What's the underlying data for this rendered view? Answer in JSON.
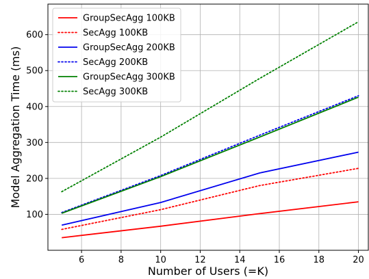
{
  "chart_data": {
    "type": "line",
    "title": "",
    "xlabel": "Number of Users (=K)",
    "ylabel": "Model Aggregation Time (ms)",
    "xlim": [
      4.3,
      20.5
    ],
    "ylim": [
      0,
      685
    ],
    "xticks": [
      6,
      8,
      10,
      12,
      14,
      16,
      18,
      20
    ],
    "yticks": [
      100,
      200,
      300,
      400,
      500,
      600
    ],
    "grid": true,
    "legend_position": "top-left",
    "x": [
      5,
      10,
      15,
      20
    ],
    "series": [
      {
        "name": "GroupSecAgg 100KB",
        "color": "#ff0000",
        "style": "solid",
        "values": [
          35,
          67,
          102,
          135
        ]
      },
      {
        "name": "SecAgg 100KB",
        "color": "#ff0000",
        "style": "dotted",
        "values": [
          58,
          113,
          180,
          228
        ]
      },
      {
        "name": "GroupSecAgg 200KB",
        "color": "#0000ee",
        "style": "solid",
        "values": [
          70,
          133,
          215,
          273
        ]
      },
      {
        "name": "SecAgg 200KB",
        "color": "#0000ee",
        "style": "dotted",
        "values": [
          105,
          208,
          320,
          430
        ]
      },
      {
        "name": "GroupSecAgg 300KB",
        "color": "#008000",
        "style": "solid",
        "values": [
          103,
          205,
          315,
          426
        ]
      },
      {
        "name": "SecAgg 300KB",
        "color": "#008000",
        "style": "dotted",
        "values": [
          163,
          315,
          478,
          636
        ]
      }
    ]
  }
}
